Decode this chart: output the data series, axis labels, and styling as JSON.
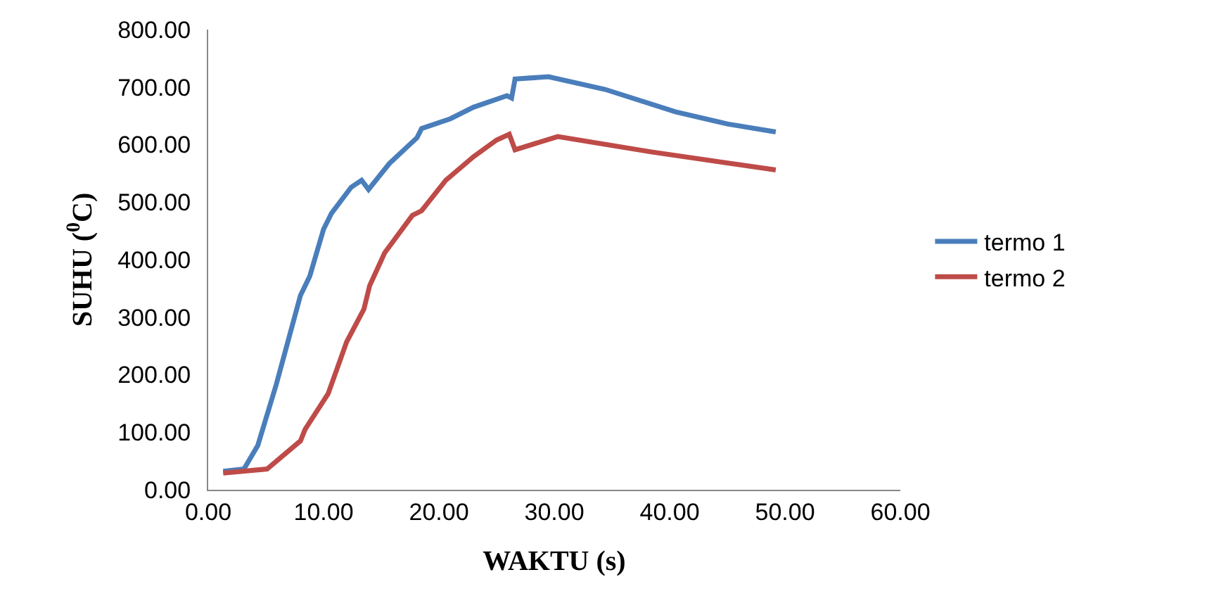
{
  "chart_data": {
    "type": "line",
    "xlabel": "WAKTU (s)",
    "ylabel": "SUHU ($^{0}$C)",
    "xlim": [
      0,
      60
    ],
    "xticks": [
      {
        "value": 0,
        "label": "0.00"
      },
      {
        "value": 10,
        "label": "10.00"
      },
      {
        "value": 20,
        "label": "20.00"
      },
      {
        "value": 30,
        "label": "30.00"
      },
      {
        "value": 40,
        "label": "40.00"
      },
      {
        "value": 50,
        "label": "50.00"
      },
      {
        "value": 60,
        "label": "60.00"
      }
    ],
    "ylim": [
      0,
      800
    ],
    "yticks": [
      {
        "value": 0,
        "label": "0.00"
      },
      {
        "value": 100,
        "label": "100.00"
      },
      {
        "value": 200,
        "label": "200.00"
      },
      {
        "value": 300,
        "label": "300.00"
      },
      {
        "value": 400,
        "label": "400.00"
      },
      {
        "value": 500,
        "label": "500.00"
      },
      {
        "value": 600,
        "label": "600.00"
      },
      {
        "value": 700,
        "label": "700.00"
      },
      {
        "value": 800,
        "label": "800.00"
      }
    ],
    "grid": false,
    "legend": "right",
    "marker": "none",
    "line_style": "solid",
    "series": [
      {
        "name": "termo 1",
        "color": "#4a7ebb",
        "x": [
          1.3,
          3.1,
          4.3,
          5.9,
          8,
          8.8,
          10,
          10.7,
          12.4,
          13.3,
          13.9,
          15.7,
          18.1,
          18.5,
          21,
          23,
          25.9,
          26.3,
          26.6,
          29.5,
          34.4,
          40.5,
          45,
          49.2
        ],
        "values": [
          32,
          36,
          77,
          183,
          338,
          371,
          453,
          481,
          526,
          538,
          522,
          567,
          612,
          628,
          645,
          665,
          685,
          681,
          714,
          718,
          696,
          657,
          636,
          622
        ]
      },
      {
        "name": "termo 2",
        "color": "#be4b48",
        "x": [
          1.3,
          5.1,
          8,
          8.4,
          10.4,
          12,
          13.5,
          14,
          15.3,
          17.7,
          18.5,
          20.6,
          23,
          25,
          26.1,
          26.6,
          30.3,
          38.5,
          49.2
        ],
        "values": [
          29,
          36,
          85,
          105,
          167,
          257,
          314,
          355,
          412,
          477,
          485,
          538,
          579,
          608,
          618,
          591,
          614,
          587,
          556
        ]
      }
    ]
  }
}
